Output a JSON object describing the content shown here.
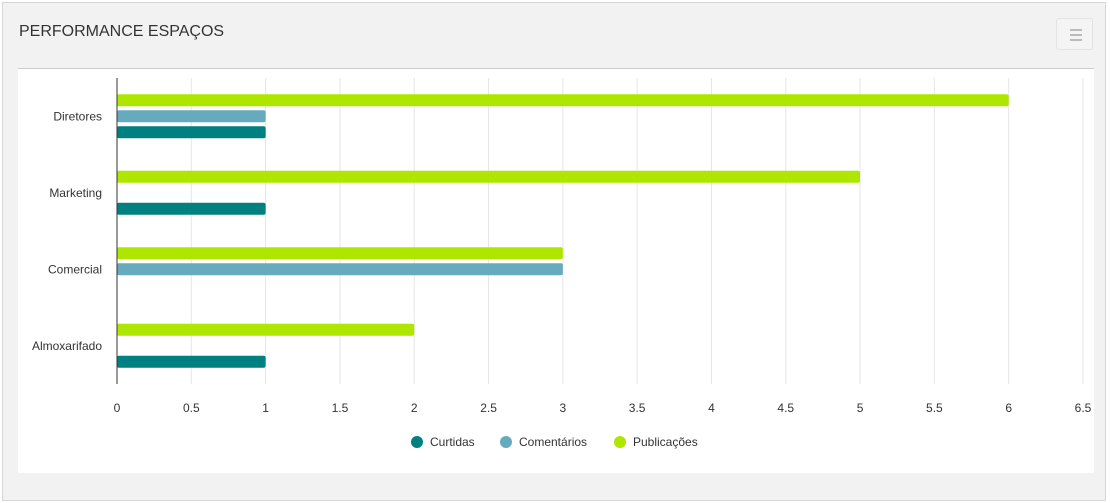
{
  "header": {
    "title": "PERFORMANCE ESPAÇOS",
    "menu_icon": "hamburger-icon"
  },
  "chart_data": {
    "type": "bar",
    "orientation": "horizontal",
    "title": "",
    "categories": [
      "Diretores",
      "Marketing",
      "Comercial",
      "Almoxarifado"
    ],
    "series": [
      {
        "name": "Curtidas",
        "color": "#008080",
        "values": [
          1,
          1,
          0,
          1
        ]
      },
      {
        "name": "Comentários",
        "color": "#66abbd",
        "values": [
          1,
          0,
          3,
          0
        ]
      },
      {
        "name": "Publicações",
        "color": "#aee600",
        "values": [
          6,
          5,
          3,
          2
        ]
      }
    ],
    "xlim": [
      0,
      6.5
    ],
    "xticks": [
      "0",
      "0.5",
      "1",
      "1.5",
      "2",
      "2.5",
      "3",
      "3.5",
      "4",
      "4.5",
      "5",
      "5.5",
      "6",
      "6.5"
    ],
    "grid": true,
    "legend": "bottom"
  }
}
